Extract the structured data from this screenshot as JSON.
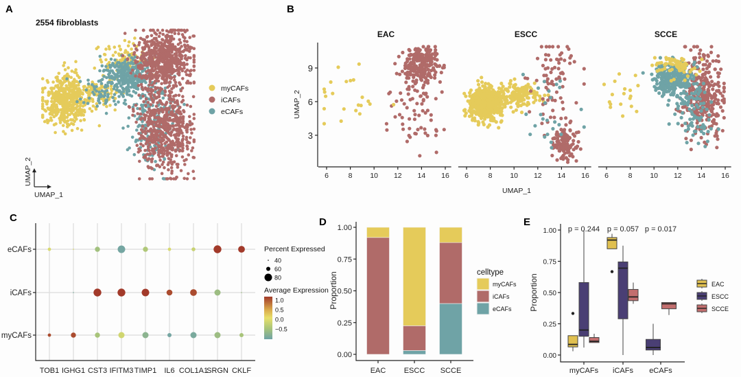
{
  "colors": {
    "myCAFs": "#E5CB5A",
    "iCAFs": "#B06B69",
    "eCAFs": "#6FA3A6",
    "EAC": "#E0C050",
    "ESCC": "#4A3F74",
    "SCCE": "#C26E6E"
  },
  "panel_labels": {
    "a": "A",
    "b": "B",
    "c": "C",
    "d": "D",
    "e": "E"
  },
  "chart_data": [
    {
      "id": "A",
      "type": "scatter",
      "title": "2554 fibroblasts",
      "xlabel": "UMAP_1",
      "ylabel": "UMAP_2",
      "legend": [
        "myCAFs",
        "iCAFs",
        "eCAFs"
      ],
      "clusters": [
        {
          "celltype": "myCAFs",
          "cx": 7.6,
          "cy": 6.0,
          "sx": 0.75,
          "sy": 0.9,
          "n": 520
        },
        {
          "celltype": "myCAFs",
          "cx": 9.8,
          "cy": 6.6,
          "sx": 0.6,
          "sy": 0.5,
          "n": 90
        },
        {
          "celltype": "myCAFs",
          "cx": 11.4,
          "cy": 8.8,
          "sx": 0.8,
          "sy": 0.6,
          "n": 110
        },
        {
          "celltype": "eCAFs",
          "cx": 11.6,
          "cy": 7.8,
          "sx": 0.8,
          "sy": 0.7,
          "n": 300
        },
        {
          "celltype": "eCAFs",
          "cx": 10.0,
          "cy": 6.7,
          "sx": 0.8,
          "sy": 0.6,
          "n": 70
        },
        {
          "celltype": "eCAFs",
          "cx": 13.4,
          "cy": 4.6,
          "sx": 0.9,
          "sy": 1.4,
          "n": 220
        },
        {
          "celltype": "iCAFs",
          "cx": 13.9,
          "cy": 8.9,
          "sx": 0.9,
          "sy": 1.1,
          "n": 650
        },
        {
          "celltype": "iCAFs",
          "cx": 14.0,
          "cy": 4.0,
          "sx": 0.9,
          "sy": 1.5,
          "n": 594
        }
      ]
    },
    {
      "id": "B",
      "type": "scatter",
      "xlabel": "UMAP_1",
      "ylabel": "UMAP_2",
      "xticks": [
        6,
        8,
        10,
        12,
        14,
        16
      ],
      "yticks": [
        3,
        6,
        9
      ],
      "xlim": [
        5.4,
        16.3
      ],
      "ylim": [
        0.2,
        11.6
      ],
      "facets": [
        {
          "title": "EAC",
          "clusters": [
            {
              "celltype": "iCAFs",
              "cx": 14.0,
              "cy": 9.3,
              "sx": 0.75,
              "sy": 0.8,
              "n": 230
            },
            {
              "celltype": "iCAFs",
              "cx": 13.6,
              "cy": 5.0,
              "sx": 1.3,
              "sy": 1.6,
              "n": 70
            },
            {
              "celltype": "myCAFs",
              "cx": 8.0,
              "cy": 6.0,
              "sx": 1.6,
              "sy": 1.3,
              "n": 22
            }
          ]
        },
        {
          "title": "ESCC",
          "clusters": [
            {
              "celltype": "myCAFs",
              "cx": 7.6,
              "cy": 5.8,
              "sx": 0.7,
              "sy": 0.75,
              "n": 520
            },
            {
              "celltype": "myCAFs",
              "cx": 10.2,
              "cy": 6.6,
              "sx": 1.0,
              "sy": 0.5,
              "n": 160
            },
            {
              "celltype": "iCAFs",
              "cx": 14.3,
              "cy": 2.2,
              "sx": 0.6,
              "sy": 0.8,
              "n": 120
            },
            {
              "celltype": "iCAFs",
              "cx": 13.6,
              "cy": 7.5,
              "sx": 1.1,
              "sy": 2.0,
              "n": 80
            },
            {
              "celltype": "eCAFs",
              "cx": 13.0,
              "cy": 4.5,
              "sx": 1.3,
              "sy": 2.0,
              "n": 25
            }
          ]
        },
        {
          "title": "SCCE",
          "clusters": [
            {
              "celltype": "iCAFs",
              "cx": 14.0,
              "cy": 6.5,
              "sx": 0.9,
              "sy": 1.9,
              "n": 330
            },
            {
              "celltype": "eCAFs",
              "cx": 11.6,
              "cy": 8.0,
              "sx": 0.8,
              "sy": 0.8,
              "n": 280
            },
            {
              "celltype": "eCAFs",
              "cx": 13.3,
              "cy": 5.0,
              "sx": 0.8,
              "sy": 1.4,
              "n": 90
            },
            {
              "celltype": "myCAFs",
              "cx": 11.8,
              "cy": 9.2,
              "sx": 0.9,
              "sy": 0.5,
              "n": 70
            },
            {
              "celltype": "myCAFs",
              "cx": 7.5,
              "cy": 6.5,
              "sx": 0.9,
              "sy": 1.0,
              "n": 18
            }
          ]
        }
      ]
    },
    {
      "id": "C",
      "type": "dotplot",
      "genes": [
        "TOB1",
        "IGHG1",
        "CST3",
        "IFITM3",
        "TIMP1",
        "IL6",
        "COL1A1",
        "SRGN",
        "CKLF"
      ],
      "rows": [
        {
          "label": "eCAFs",
          "pct": [
            55,
            42,
            65,
            80,
            65,
            55,
            58,
            82,
            75
          ],
          "avg": [
            -0.1,
            -0.1,
            -0.45,
            -0.85,
            -0.35,
            -0.1,
            -0.2,
            1.1,
            1.1
          ]
        },
        {
          "label": "iCAFs",
          "pct": [
            0,
            38,
            82,
            82,
            80,
            70,
            75,
            72,
            36
          ],
          "avg": [
            0,
            -0.8,
            1.1,
            1.1,
            1.1,
            1.0,
            1.0,
            -0.5,
            -0.5
          ]
        },
        {
          "label": "myCAFs",
          "pct": [
            55,
            65,
            65,
            72,
            72,
            60,
            72,
            72,
            60
          ],
          "avg": [
            1.0,
            1.0,
            -0.4,
            -0.15,
            -0.65,
            -0.85,
            -0.8,
            -0.5,
            -0.4
          ]
        }
      ],
      "size_legend": {
        "title": "Percent Expressed",
        "values": [
          40,
          60,
          80
        ]
      },
      "color_legend": {
        "title": "Average Expression",
        "ticks": [
          "1.0",
          "0.5",
          "0.0",
          "−0.5"
        ],
        "range": [
          -0.9,
          1.15
        ]
      }
    },
    {
      "id": "D",
      "type": "bar",
      "stacked": true,
      "categories": [
        "EAC",
        "ESCC",
        "SCCE"
      ],
      "series": [
        {
          "name": "eCAFs",
          "values": [
            0.0,
            0.03,
            0.4
          ]
        },
        {
          "name": "iCAFs",
          "values": [
            0.92,
            0.195,
            0.48
          ]
        },
        {
          "name": "myCAFs",
          "values": [
            0.08,
            0.775,
            0.12
          ]
        }
      ],
      "ylabel": "Proportion",
      "ylim": [
        0,
        1
      ],
      "yticks": [
        "0.00",
        "0.25",
        "0.50",
        "0.75",
        "1.00"
      ],
      "legend_title": "celltype",
      "legend": [
        "myCAFs",
        "iCAFs",
        "eCAFs"
      ]
    },
    {
      "id": "E",
      "type": "box",
      "categories": [
        "myCAFs",
        "iCAFs",
        "eCAFs"
      ],
      "pvalues": [
        "p = 0.244",
        "p = 0.057",
        "p = 0.017"
      ],
      "ylabel": "Proportion",
      "ylim": [
        0,
        1
      ],
      "yticks": [
        "0.00",
        "0.25",
        "0.50",
        "0.75",
        "1.00"
      ],
      "legend": [
        "EAC",
        "ESCC",
        "SCCE"
      ],
      "boxes": [
        {
          "category": "myCAFs",
          "group": "EAC",
          "low": 0.03,
          "q1": 0.065,
          "median": 0.085,
          "q3": 0.155,
          "high": 0.155,
          "outliers": [
            0.333
          ]
        },
        {
          "category": "myCAFs",
          "group": "ESCC",
          "low": 0.06,
          "q1": 0.15,
          "median": 0.2,
          "q3": 0.58,
          "high": 1.0,
          "outliers": []
        },
        {
          "category": "myCAFs",
          "group": "SCCE",
          "low": 0.1,
          "q1": 0.1,
          "median": 0.11,
          "q3": 0.14,
          "high": 0.17,
          "outliers": []
        },
        {
          "category": "iCAFs",
          "group": "EAC",
          "low": 0.85,
          "q1": 0.85,
          "median": 0.92,
          "q3": 0.94,
          "high": 0.97,
          "outliers": [
            0.667
          ]
        },
        {
          "category": "iCAFs",
          "group": "ESCC",
          "low": 0.0,
          "q1": 0.29,
          "median": 0.695,
          "q3": 0.745,
          "high": 0.875,
          "outliers": []
        },
        {
          "category": "iCAFs",
          "group": "SCCE",
          "low": 0.41,
          "q1": 0.435,
          "median": 0.465,
          "q3": 0.525,
          "high": 0.58,
          "outliers": []
        },
        {
          "category": "eCAFs",
          "group": "ESCC",
          "low": 0.0,
          "q1": 0.04,
          "median": 0.06,
          "q3": 0.125,
          "high": 0.25,
          "outliers": []
        },
        {
          "category": "eCAFs",
          "group": "SCCE",
          "low": 0.32,
          "q1": 0.37,
          "median": 0.41,
          "q3": 0.42,
          "high": 0.42,
          "outliers": []
        }
      ]
    }
  ]
}
